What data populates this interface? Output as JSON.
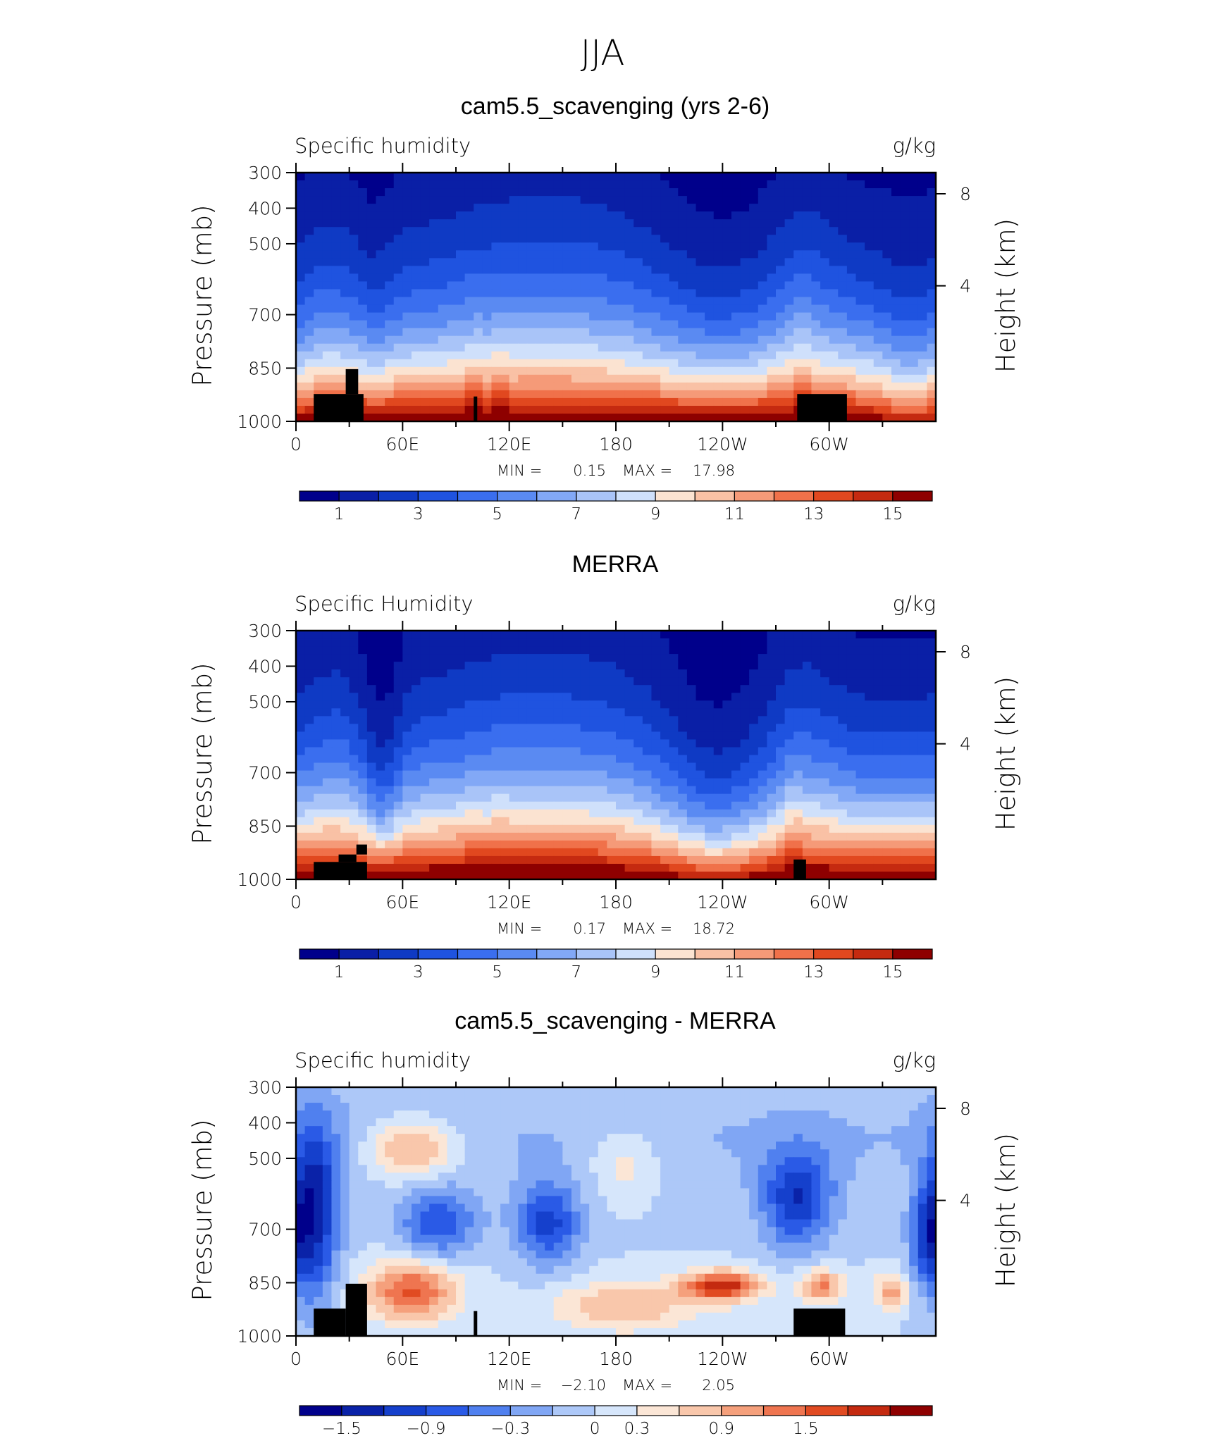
{
  "figure_title": "JJA",
  "chart_data": [
    {
      "type": "heatmap",
      "title": "cam5.5_scavenging (yrs 2-6)",
      "subtitle_left": "Specific humidity",
      "subtitle_right": "g/kg",
      "ylabel": "Pressure (mb)",
      "ylabel_right": "Height (km)",
      "y_ticks": [
        "300",
        "400",
        "500",
        "700",
        "850",
        "1000"
      ],
      "y_ticks_right": [
        "8",
        "4"
      ],
      "x_ticks": [
        "0",
        "60E",
        "120E",
        "180",
        "120W",
        "60W"
      ],
      "min_label": "MIN =",
      "min_value": "0.15",
      "max_label": "MAX =",
      "max_value": "17.98",
      "colorbar_labels": [
        "1",
        "3",
        "5",
        "7",
        "9",
        "11",
        "13",
        "15"
      ],
      "colorbar_levels": [
        1,
        2,
        3,
        4,
        5,
        6,
        7,
        8,
        9,
        10,
        11,
        12,
        13,
        14,
        15
      ],
      "field": "humidity_model"
    },
    {
      "type": "heatmap",
      "title": "MERRA",
      "subtitle_left": "Specific Humidity",
      "subtitle_right": "g/kg",
      "ylabel": "Pressure (mb)",
      "ylabel_right": "Height (km)",
      "y_ticks": [
        "300",
        "400",
        "500",
        "700",
        "850",
        "1000"
      ],
      "y_ticks_right": [
        "8",
        "4"
      ],
      "x_ticks": [
        "0",
        "60E",
        "120E",
        "180",
        "120W",
        "60W"
      ],
      "min_label": "MIN =",
      "min_value": "0.17",
      "max_label": "MAX =",
      "max_value": "18.72",
      "colorbar_labels": [
        "1",
        "3",
        "5",
        "7",
        "9",
        "11",
        "13",
        "15"
      ],
      "colorbar_levels": [
        1,
        2,
        3,
        4,
        5,
        6,
        7,
        8,
        9,
        10,
        11,
        12,
        13,
        14,
        15
      ],
      "field": "humidity_obs"
    },
    {
      "type": "heatmap",
      "title": "cam5.5_scavenging - MERRA",
      "subtitle_left": "Specific humidity",
      "subtitle_right": "g/kg",
      "ylabel": "Pressure (mb)",
      "ylabel_right": "Height (km)",
      "y_ticks": [
        "300",
        "400",
        "500",
        "700",
        "850",
        "1000"
      ],
      "y_ticks_right": [
        "8",
        "4"
      ],
      "x_ticks": [
        "0",
        "60E",
        "120E",
        "180",
        "120W",
        "60W"
      ],
      "min_label": "MIN =",
      "min_value": "−2.10",
      "max_label": "MAX =",
      "max_value": "2.05",
      "colorbar_labels": [
        "−1.5",
        "−0.9",
        "−0.3",
        "0",
        "0.3",
        "0.9",
        "1.5"
      ],
      "colorbar_levels": [
        -1.8,
        -1.5,
        -1.2,
        -0.9,
        -0.6,
        -0.3,
        0,
        0.3,
        0.6,
        0.9,
        1.2,
        1.5,
        1.8
      ],
      "field": "difference"
    }
  ],
  "colors": {
    "humidity_palette": [
      "#00008b",
      "#0a1fa6",
      "#0f3ac4",
      "#1f53e0",
      "#3a6eef",
      "#5a8af2",
      "#82a8f6",
      "#a9c4f8",
      "#cfe0fb",
      "#fbe3d1",
      "#f9c1a5",
      "#f59a78",
      "#f0714a",
      "#e1481f",
      "#c52a10",
      "#8e0000"
    ],
    "diff_palette": [
      "#00008b",
      "#0a22a8",
      "#1540cc",
      "#2a5ae6",
      "#5080ef",
      "#80a6f4",
      "#adc8f8",
      "#d6e6fb",
      "#fbe6d6",
      "#f9c7ab",
      "#f5a07c",
      "#ef7550",
      "#e14b22",
      "#c42a10",
      "#8e0000"
    ],
    "terrain": "#000000"
  }
}
